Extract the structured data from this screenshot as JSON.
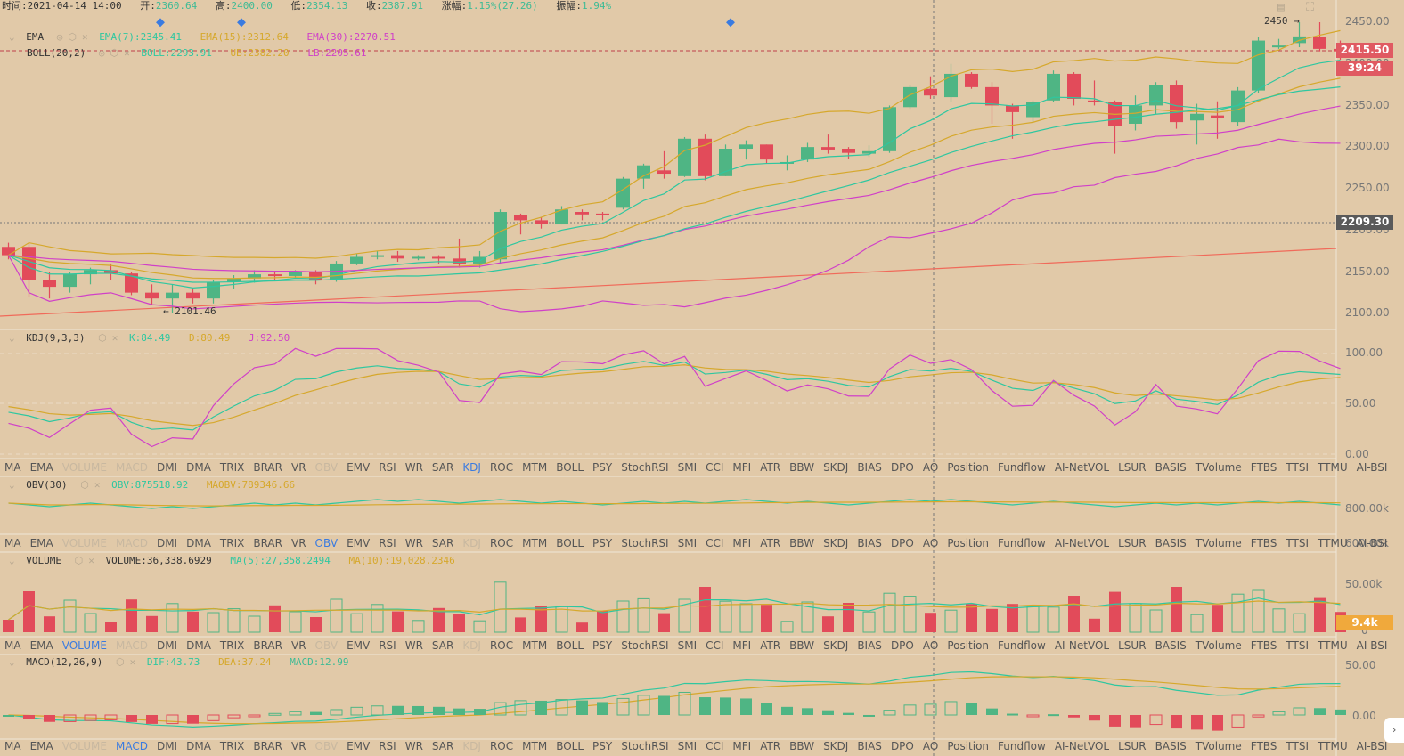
{
  "header": {
    "time_label": "时间:",
    "time": "2021-04-14 14:00",
    "open_label": "开:",
    "open": "2360.64",
    "high_label": "高:",
    "high": "2400.00",
    "low_label": "低:",
    "low": "2354.13",
    "close_label": "收:",
    "close": "2387.91",
    "change_label": "涨幅:",
    "change": "1.15%(27.26)",
    "amp_label": "振幅:",
    "amp": "1.94%"
  },
  "main_legend": {
    "ema_name": "EMA",
    "ema7": "EMA(7):2345.41",
    "ema15": "EMA(15):2312.64",
    "ema30": "EMA(30):2270.51",
    "boll_name": "BOLL(20,2)",
    "boll": "BOLL:2293.91",
    "ub": "UB:2382.20",
    "lb": "LB:2205.61"
  },
  "main_annotations": {
    "high_mark": "2450 →",
    "low_mark": "← 2101.46"
  },
  "price_tags": {
    "last_price": "2415.50",
    "countdown": "39:24",
    "crosshair_price": "2209.30",
    "volume_tag": "9.4k"
  },
  "axes": {
    "price": [
      "2450.00",
      "2400.00",
      "2350.00",
      "2300.00",
      "2250.00",
      "2200.00",
      "2150.00",
      "2100.00"
    ],
    "kdj": [
      "100.00",
      "50.00",
      "0.00"
    ],
    "obv": [
      "800.00k",
      "600.00k"
    ],
    "volume": [
      "50.00k",
      "0"
    ],
    "macd": [
      "50.00",
      "0.00"
    ]
  },
  "kdj_legend": {
    "name": "KDJ(9,3,3)",
    "k": "K:84.49",
    "d": "D:80.49",
    "j": "J:92.50"
  },
  "obv_legend": {
    "name": "OBV(30)",
    "obv": "OBV:875518.92",
    "maobv": "MAOBV:789346.66"
  },
  "volume_legend": {
    "name": "VOLUME",
    "volume": "VOLUME:36,338.6929",
    "ma5": "MA(5):27,358.2494",
    "ma10": "MA(10):19,028.2346"
  },
  "macd_legend": {
    "name": "MACD(12,26,9)",
    "dif": "DIF:43.73",
    "dea": "DEA:37.24",
    "macd": "MACD:12.99"
  },
  "indicator_tabs": [
    "MA",
    "EMA",
    "VOLUME",
    "MACD",
    "DMI",
    "DMA",
    "TRIX",
    "BRAR",
    "VR",
    "OBV",
    "EMV",
    "RSI",
    "WR",
    "SAR",
    "KDJ",
    "ROC",
    "MTM",
    "BOLL",
    "PSY",
    "StochRSI",
    "SMI",
    "CCI",
    "MFI",
    "ATR",
    "BBW",
    "SKDJ",
    "BIAS",
    "DPO",
    "AO",
    "Position",
    "Fundflow",
    "AI-NetVOL",
    "LSUR",
    "BASIS",
    "TVolume",
    "FTBS",
    "TTSI",
    "TTMU",
    "AI-BSI"
  ],
  "tab_rows": [
    {
      "active": "KDJ",
      "disabled": [
        "VOLUME",
        "MACD",
        "OBV"
      ]
    },
    {
      "active": "OBV",
      "disabled": [
        "VOLUME",
        "MACD",
        "KDJ"
      ]
    },
    {
      "active": "VOLUME",
      "disabled": [
        "MACD",
        "OBV",
        "KDJ"
      ]
    },
    {
      "active": "MACD",
      "disabled": [
        "VOLUME",
        "OBV",
        "KDJ"
      ]
    }
  ],
  "colors": {
    "up": "#4fb584",
    "down": "#e24b5a",
    "teal": "#2ec7a0",
    "gold": "#d6a82c",
    "magenta": "#d040c8",
    "trend": "#f06a5a",
    "bg": "#e1c9a8"
  },
  "chart_data": {
    "type": "candlestick",
    "title": "",
    "ylim": [
      2080,
      2460
    ],
    "candles": [
      [
        2180,
        2170,
        2185,
        2165
      ],
      [
        2180,
        2140,
        2185,
        2120
      ],
      [
        2140,
        2132,
        2150,
        2118
      ],
      [
        2132,
        2147,
        2150,
        2125
      ],
      [
        2147,
        2152,
        2155,
        2135
      ],
      [
        2152,
        2148,
        2160,
        2140
      ],
      [
        2148,
        2125,
        2150,
        2122
      ],
      [
        2125,
        2118,
        2135,
        2110
      ],
      [
        2118,
        2125,
        2135,
        2101
      ],
      [
        2125,
        2118,
        2130,
        2112
      ],
      [
        2118,
        2138,
        2140,
        2112
      ],
      [
        2138,
        2142,
        2146,
        2130
      ],
      [
        2142,
        2147,
        2152,
        2137
      ],
      [
        2147,
        2145,
        2150,
        2140
      ],
      [
        2145,
        2150,
        2152,
        2142
      ],
      [
        2150,
        2140,
        2152,
        2135
      ],
      [
        2140,
        2160,
        2163,
        2138
      ],
      [
        2160,
        2168,
        2172,
        2158
      ],
      [
        2168,
        2170,
        2175,
        2165
      ],
      [
        2170,
        2166,
        2175,
        2162
      ],
      [
        2166,
        2168,
        2170,
        2164
      ],
      [
        2168,
        2166,
        2170,
        2160
      ],
      [
        2166,
        2160,
        2190,
        2155
      ],
      [
        2160,
        2168,
        2175,
        2155
      ],
      [
        2165,
        2222,
        2225,
        2160
      ],
      [
        2218,
        2212,
        2220,
        2195
      ],
      [
        2212,
        2208,
        2216,
        2202
      ],
      [
        2207,
        2225,
        2229,
        2207
      ],
      [
        2222,
        2219,
        2225,
        2212
      ],
      [
        2220,
        2218,
        2222,
        2212
      ],
      [
        2227,
        2262,
        2264,
        2225
      ],
      [
        2262,
        2278,
        2280,
        2250
      ],
      [
        2272,
        2268,
        2295,
        2262
      ],
      [
        2265,
        2310,
        2312,
        2264
      ],
      [
        2310,
        2265,
        2315,
        2260
      ],
      [
        2265,
        2298,
        2303,
        2265
      ],
      [
        2298,
        2303,
        2308,
        2285
      ],
      [
        2303,
        2285,
        2303,
        2280
      ],
      [
        2280,
        2282,
        2290,
        2272
      ],
      [
        2285,
        2300,
        2305,
        2282
      ],
      [
        2300,
        2297,
        2315,
        2292
      ],
      [
        2298,
        2293,
        2300,
        2286
      ],
      [
        2292,
        2295,
        2302,
        2288
      ],
      [
        2295,
        2348,
        2350,
        2293
      ],
      [
        2348,
        2372,
        2374,
        2346
      ],
      [
        2370,
        2362,
        2385,
        2358
      ],
      [
        2360,
        2388,
        2400,
        2354
      ],
      [
        2388,
        2372,
        2390,
        2370
      ],
      [
        2372,
        2350,
        2378,
        2328
      ],
      [
        2350,
        2342,
        2352,
        2310
      ],
      [
        2336,
        2354,
        2356,
        2330
      ],
      [
        2356,
        2388,
        2392,
        2354
      ],
      [
        2388,
        2358,
        2390,
        2350
      ],
      [
        2356,
        2354,
        2380,
        2350
      ],
      [
        2354,
        2325,
        2356,
        2292
      ],
      [
        2328,
        2350,
        2362,
        2320
      ],
      [
        2350,
        2375,
        2378,
        2340
      ],
      [
        2375,
        2330,
        2380,
        2322
      ],
      [
        2332,
        2340,
        2352,
        2303
      ],
      [
        2338,
        2335,
        2355,
        2310
      ],
      [
        2330,
        2368,
        2372,
        2325
      ],
      [
        2368,
        2428,
        2432,
        2365
      ],
      [
        2420,
        2422,
        2430,
        2418
      ],
      [
        2425,
        2433,
        2450,
        2420
      ],
      [
        2432,
        2418,
        2450,
        2415
      ],
      [
        2418,
        2415,
        2428,
        2405
      ]
    ],
    "series": [
      {
        "name": "EMA(7)",
        "color": "#2ec7a0",
        "last": 2345.41
      },
      {
        "name": "EMA(15)",
        "color": "#d6a82c",
        "last": 2312.64
      },
      {
        "name": "EMA(30)",
        "color": "#d040c8",
        "last": 2270.51
      },
      {
        "name": "BOLL",
        "last": 2293.91
      },
      {
        "name": "UB",
        "last": 2382.2
      },
      {
        "name": "LB",
        "last": 2205.61
      }
    ],
    "kdj": {
      "K": 84.49,
      "D": 80.49,
      "J": 92.5,
      "ylim": [
        0,
        100
      ]
    },
    "obv": {
      "OBV": 875518.92,
      "MAOBV": 789346.66
    },
    "volume": {
      "VOLUME": 36338.6929,
      "MA5": 27358.2494,
      "MA10": 19028.2346
    },
    "macd": {
      "DIF": 43.73,
      "DEA": 37.24,
      "MACD": 12.99
    }
  }
}
